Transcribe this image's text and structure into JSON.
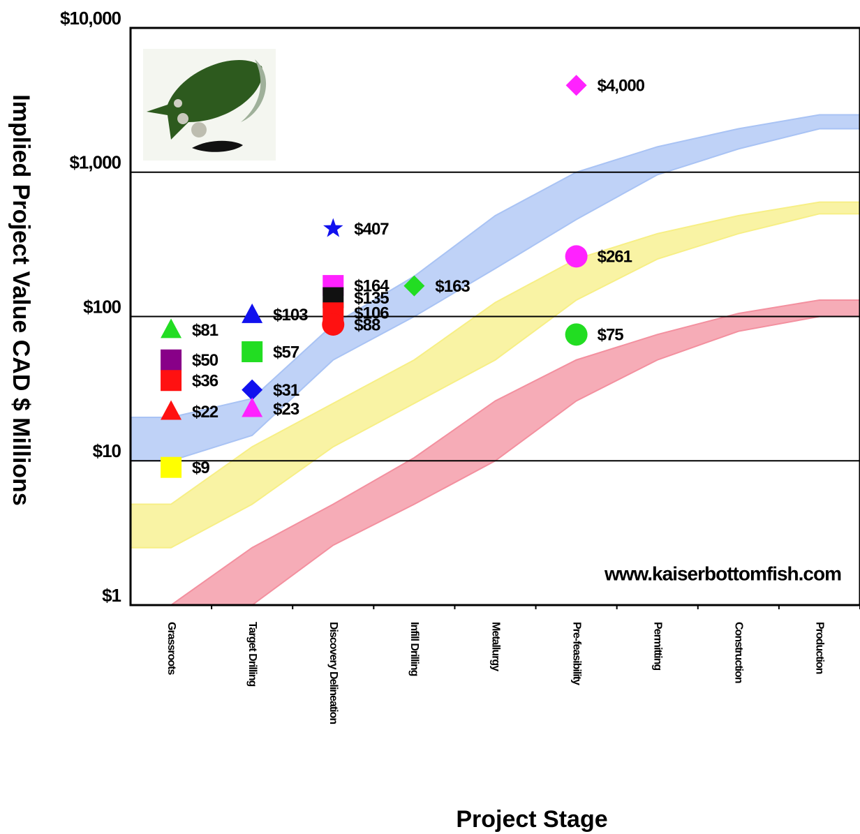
{
  "chart_data": {
    "type": "scatter",
    "y_axis_title": "Implied Project Value CAD $ Millions",
    "x_axis_title": "Project Stage",
    "watermark": "www.kaiserbottomfish.com",
    "categories": [
      "Grassroots",
      "Target Drilling",
      "Discovery Delineation",
      "Infill Drilling",
      "Metallurgy",
      "Pre-feasibility",
      "Permitting",
      "Construction",
      "Production"
    ],
    "log_y": true,
    "ylim": [
      1,
      10000
    ],
    "yticks": [
      {
        "value": 1,
        "label": "$1"
      },
      {
        "value": 10,
        "label": "$10"
      },
      {
        "value": 100,
        "label": "$100"
      },
      {
        "value": 1000,
        "label": "$1,000"
      },
      {
        "value": 10000,
        "label": "$10,000"
      }
    ],
    "grid": true,
    "bands": [
      {
        "color": "#a9c3f4",
        "upper": [
          20,
          27,
          88,
          190,
          500,
          1000,
          1500,
          2000,
          2500
        ],
        "lower": [
          10,
          15,
          50,
          100,
          215,
          470,
          960,
          1450,
          2000
        ]
      },
      {
        "color": "#f7ef86",
        "upper": [
          5,
          12.5,
          25,
          50,
          125,
          250,
          375,
          500,
          620
        ],
        "lower": [
          2.5,
          5,
          12.5,
          25,
          50,
          130,
          250,
          375,
          515
        ]
      },
      {
        "color": "#f3909f",
        "upper": [
          1,
          2.5,
          5,
          10.5,
          26,
          50,
          75,
          105,
          130
        ],
        "lower": [
          1,
          1,
          2.6,
          5,
          10,
          26,
          50,
          79,
          100
        ]
      }
    ],
    "points": [
      {
        "category": 0,
        "value": 81,
        "label": "$81",
        "marker": "triangle",
        "color": "#22dd22"
      },
      {
        "category": 0,
        "value": 50,
        "label": "$50",
        "marker": "square",
        "color": "#880088"
      },
      {
        "category": 0,
        "value": 36,
        "label": "$36",
        "marker": "square",
        "color": "#ff1111"
      },
      {
        "category": 0,
        "value": 22,
        "label": "$22",
        "marker": "triangle",
        "color": "#ff1111"
      },
      {
        "category": 0,
        "value": 9,
        "label": "$9",
        "marker": "square",
        "color": "#ffff00"
      },
      {
        "category": 1,
        "value": 103,
        "label": "$103",
        "marker": "triangle",
        "color": "#1111ee"
      },
      {
        "category": 1,
        "value": 57,
        "label": "$57",
        "marker": "square",
        "color": "#22dd22"
      },
      {
        "category": 1,
        "value": 31,
        "label": "$31",
        "marker": "diamond",
        "color": "#1111ee"
      },
      {
        "category": 1,
        "value": 23,
        "label": "$23",
        "marker": "triangle",
        "color": "#ff22ff"
      },
      {
        "category": 2,
        "value": 407,
        "label": "$407",
        "marker": "star",
        "color": "#1111ee"
      },
      {
        "category": 2,
        "value": 164,
        "label": "$164",
        "marker": "square",
        "color": "#ff22ff"
      },
      {
        "category": 2,
        "value": 135,
        "label": "$135",
        "marker": "square",
        "color": "#111111"
      },
      {
        "category": 2,
        "value": 106,
        "label": "$106",
        "marker": "square",
        "color": "#ff1111"
      },
      {
        "category": 2,
        "value": 88,
        "label": "$88",
        "marker": "circle",
        "color": "#ff1111"
      },
      {
        "category": 3,
        "value": 163,
        "label": "$163",
        "marker": "diamond",
        "color": "#22dd22"
      },
      {
        "category": 5,
        "value": 4000,
        "label": "$4,000",
        "marker": "diamond",
        "color": "#ff22ff"
      },
      {
        "category": 5,
        "value": 261,
        "label": "$261",
        "marker": "circle",
        "color": "#ff22ff"
      },
      {
        "category": 5,
        "value": 75,
        "label": "$75",
        "marker": "circle",
        "color": "#22dd22"
      }
    ]
  }
}
